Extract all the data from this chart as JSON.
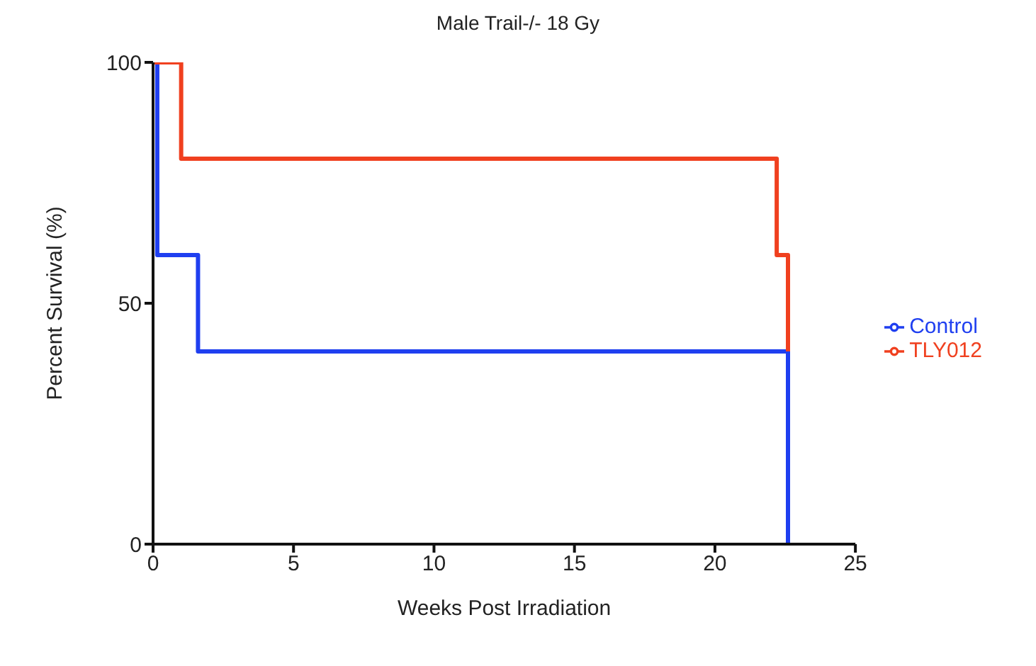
{
  "chart_data": {
    "type": "step",
    "title": "Male Trail-/- 18 Gy",
    "xlabel": "Weeks Post Irradiation",
    "ylabel": "Percent Survival (%)",
    "xlim": [
      0,
      25
    ],
    "xticks": [
      0,
      5,
      10,
      15,
      20,
      25
    ],
    "ylim": [
      0,
      100
    ],
    "yticks": [
      0,
      50,
      100
    ],
    "grid": false,
    "legend": "right",
    "series": [
      {
        "name": "Control",
        "color": "#1f3ff0",
        "x": [
          0,
          0.15,
          1.6,
          22.6
        ],
        "values": [
          100,
          60,
          40,
          0
        ]
      },
      {
        "name": "TLY012",
        "color": "#f0401f",
        "x": [
          0,
          1,
          22.2,
          22.6
        ],
        "values": [
          100,
          80,
          60,
          40
        ]
      }
    ]
  }
}
